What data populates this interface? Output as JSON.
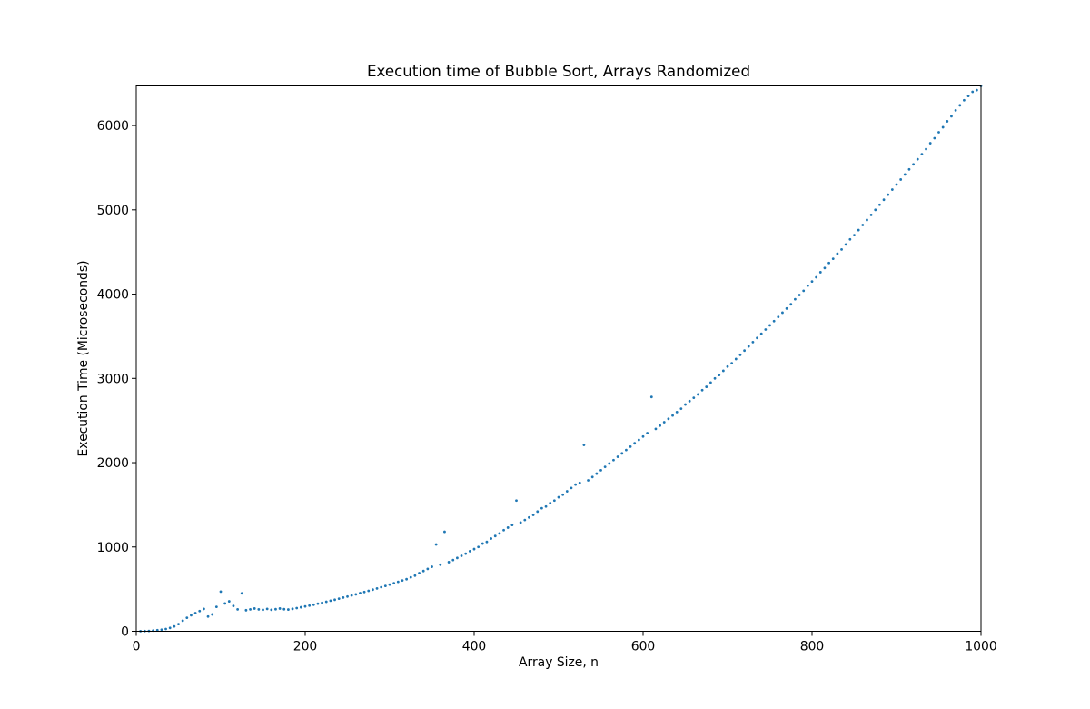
{
  "chart_data": {
    "type": "scatter",
    "title": "Execution time of Bubble Sort, Arrays Randomized",
    "xlabel": "Array Size, n",
    "ylabel": "Execution Time (Microseconds)",
    "xlim": [
      0,
      1000
    ],
    "ylim": [
      0,
      6470
    ],
    "xticks": [
      0,
      200,
      400,
      600,
      800,
      1000
    ],
    "yticks": [
      0,
      1000,
      2000,
      3000,
      4000,
      5000,
      6000
    ],
    "grid": false,
    "marker_color": "#1f77b4",
    "points": [
      [
        5,
        1
      ],
      [
        10,
        2
      ],
      [
        15,
        4
      ],
      [
        20,
        8
      ],
      [
        25,
        13
      ],
      [
        30,
        19
      ],
      [
        35,
        27
      ],
      [
        40,
        40
      ],
      [
        45,
        58
      ],
      [
        50,
        85
      ],
      [
        55,
        125
      ],
      [
        60,
        160
      ],
      [
        65,
        190
      ],
      [
        70,
        215
      ],
      [
        75,
        240
      ],
      [
        80,
        265
      ],
      [
        85,
        175
      ],
      [
        90,
        200
      ],
      [
        95,
        290
      ],
      [
        100,
        470
      ],
      [
        105,
        330
      ],
      [
        110,
        355
      ],
      [
        115,
        300
      ],
      [
        120,
        260
      ],
      [
        125,
        450
      ],
      [
        130,
        250
      ],
      [
        135,
        260
      ],
      [
        140,
        270
      ],
      [
        145,
        260
      ],
      [
        150,
        255
      ],
      [
        155,
        265
      ],
      [
        160,
        255
      ],
      [
        165,
        262
      ],
      [
        170,
        270
      ],
      [
        175,
        262
      ],
      [
        180,
        258
      ],
      [
        185,
        266
      ],
      [
        190,
        275
      ],
      [
        195,
        285
      ],
      [
        200,
        295
      ],
      [
        205,
        305
      ],
      [
        210,
        315
      ],
      [
        215,
        327
      ],
      [
        220,
        338
      ],
      [
        225,
        350
      ],
      [
        230,
        362
      ],
      [
        235,
        374
      ],
      [
        240,
        387
      ],
      [
        245,
        400
      ],
      [
        250,
        412
      ],
      [
        255,
        425
      ],
      [
        260,
        438
      ],
      [
        265,
        452
      ],
      [
        270,
        466
      ],
      [
        275,
        480
      ],
      [
        280,
        494
      ],
      [
        285,
        508
      ],
      [
        290,
        523
      ],
      [
        295,
        538
      ],
      [
        300,
        554
      ],
      [
        305,
        570
      ],
      [
        310,
        586
      ],
      [
        315,
        602
      ],
      [
        320,
        618
      ],
      [
        325,
        640
      ],
      [
        330,
        660
      ],
      [
        335,
        690
      ],
      [
        340,
        715
      ],
      [
        345,
        740
      ],
      [
        350,
        765
      ],
      [
        355,
        1030
      ],
      [
        360,
        790
      ],
      [
        365,
        1180
      ],
      [
        370,
        820
      ],
      [
        375,
        845
      ],
      [
        380,
        870
      ],
      [
        385,
        895
      ],
      [
        390,
        920
      ],
      [
        395,
        950
      ],
      [
        400,
        975
      ],
      [
        405,
        1000
      ],
      [
        410,
        1040
      ],
      [
        415,
        1060
      ],
      [
        420,
        1100
      ],
      [
        425,
        1130
      ],
      [
        430,
        1160
      ],
      [
        435,
        1200
      ],
      [
        440,
        1230
      ],
      [
        445,
        1260
      ],
      [
        450,
        1550
      ],
      [
        455,
        1290
      ],
      [
        460,
        1320
      ],
      [
        465,
        1350
      ],
      [
        470,
        1380
      ],
      [
        475,
        1420
      ],
      [
        480,
        1460
      ],
      [
        485,
        1480
      ],
      [
        490,
        1520
      ],
      [
        495,
        1550
      ],
      [
        500,
        1590
      ],
      [
        505,
        1620
      ],
      [
        510,
        1660
      ],
      [
        515,
        1700
      ],
      [
        520,
        1740
      ],
      [
        525,
        1760
      ],
      [
        530,
        2210
      ],
      [
        535,
        1790
      ],
      [
        540,
        1830
      ],
      [
        545,
        1870
      ],
      [
        550,
        1910
      ],
      [
        555,
        1950
      ],
      [
        560,
        1990
      ],
      [
        565,
        2030
      ],
      [
        570,
        2070
      ],
      [
        575,
        2110
      ],
      [
        580,
        2150
      ],
      [
        585,
        2190
      ],
      [
        590,
        2230
      ],
      [
        595,
        2270
      ],
      [
        600,
        2310
      ],
      [
        605,
        2350
      ],
      [
        610,
        2780
      ],
      [
        615,
        2400
      ],
      [
        620,
        2440
      ],
      [
        625,
        2480
      ],
      [
        630,
        2520
      ],
      [
        635,
        2560
      ],
      [
        640,
        2600
      ],
      [
        645,
        2640
      ],
      [
        650,
        2690
      ],
      [
        655,
        2730
      ],
      [
        660,
        2770
      ],
      [
        665,
        2810
      ],
      [
        670,
        2860
      ],
      [
        675,
        2900
      ],
      [
        680,
        2950
      ],
      [
        685,
        3000
      ],
      [
        690,
        3040
      ],
      [
        695,
        3090
      ],
      [
        700,
        3140
      ],
      [
        705,
        3180
      ],
      [
        710,
        3230
      ],
      [
        715,
        3280
      ],
      [
        720,
        3330
      ],
      [
        725,
        3380
      ],
      [
        730,
        3430
      ],
      [
        735,
        3480
      ],
      [
        740,
        3530
      ],
      [
        745,
        3580
      ],
      [
        750,
        3630
      ],
      [
        755,
        3680
      ],
      [
        760,
        3730
      ],
      [
        765,
        3780
      ],
      [
        770,
        3830
      ],
      [
        775,
        3880
      ],
      [
        780,
        3940
      ],
      [
        785,
        3990
      ],
      [
        790,
        4040
      ],
      [
        795,
        4100
      ],
      [
        800,
        4150
      ],
      [
        805,
        4200
      ],
      [
        810,
        4260
      ],
      [
        815,
        4310
      ],
      [
        820,
        4370
      ],
      [
        825,
        4420
      ],
      [
        830,
        4480
      ],
      [
        835,
        4530
      ],
      [
        840,
        4590
      ],
      [
        845,
        4650
      ],
      [
        850,
        4700
      ],
      [
        855,
        4760
      ],
      [
        860,
        4820
      ],
      [
        865,
        4880
      ],
      [
        870,
        4940
      ],
      [
        875,
        5000
      ],
      [
        880,
        5060
      ],
      [
        885,
        5120
      ],
      [
        890,
        5180
      ],
      [
        895,
        5240
      ],
      [
        900,
        5300
      ],
      [
        905,
        5360
      ],
      [
        910,
        5420
      ],
      [
        915,
        5480
      ],
      [
        920,
        5540
      ],
      [
        925,
        5600
      ],
      [
        930,
        5660
      ],
      [
        935,
        5720
      ],
      [
        940,
        5790
      ],
      [
        945,
        5850
      ],
      [
        950,
        5920
      ],
      [
        955,
        5980
      ],
      [
        960,
        6050
      ],
      [
        965,
        6110
      ],
      [
        970,
        6180
      ],
      [
        975,
        6240
      ],
      [
        980,
        6300
      ],
      [
        985,
        6350
      ],
      [
        990,
        6400
      ],
      [
        995,
        6420
      ],
      [
        1000,
        6470
      ]
    ]
  }
}
